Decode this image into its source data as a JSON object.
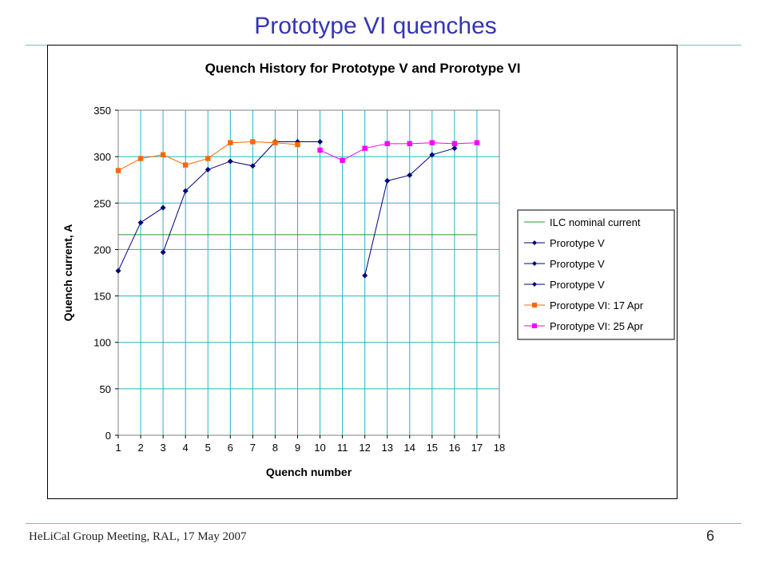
{
  "slide": {
    "title": "Prototype VI quenches",
    "footer": "HeLiCal Group Meeting, RAL, 17 May 2007",
    "page_number": "6"
  },
  "chart_data": {
    "type": "line",
    "title": "Quench History for Prototype V and Prorotype VI",
    "xlabel": "Quench number",
    "ylabel": "Quench current, A",
    "xlim": [
      1,
      18
    ],
    "ylim": [
      0,
      350
    ],
    "x_ticks": [
      1,
      2,
      3,
      4,
      5,
      6,
      7,
      8,
      9,
      10,
      11,
      12,
      13,
      14,
      15,
      16,
      17,
      18
    ],
    "y_ticks": [
      0,
      50,
      100,
      150,
      200,
      250,
      300,
      350
    ],
    "grid": true,
    "legend_position": "right",
    "colors": {
      "grid": "#22b5c6",
      "plot_border": "#808080"
    },
    "series": [
      {
        "name": "ILC nominal current",
        "color": "#2e9a2e",
        "marker": "none",
        "x": [
          1,
          17
        ],
        "y": [
          216,
          216
        ]
      },
      {
        "name": "Prorotype V",
        "color": "#00007a",
        "marker": "diamond",
        "x": [
          1,
          2,
          3
        ],
        "y": [
          177,
          229,
          245
        ]
      },
      {
        "name": "Prorotype V",
        "color": "#00007a",
        "marker": "diamond",
        "x": [
          3,
          4,
          5,
          6,
          7,
          8,
          9,
          10
        ],
        "y": [
          197,
          263,
          286,
          295,
          290,
          316,
          316,
          316
        ]
      },
      {
        "name": "Prorotype V",
        "color": "#00007a",
        "marker": "diamond",
        "x": [
          12,
          13,
          14,
          15,
          16
        ],
        "y": [
          172,
          274,
          280,
          302,
          309
        ]
      },
      {
        "name": "Prorotype VI: 17 Apr",
        "color": "#ff6600",
        "marker": "square",
        "x": [
          1,
          2,
          3,
          4,
          5,
          6,
          7,
          8,
          9
        ],
        "y": [
          285,
          298,
          302,
          291,
          298,
          315,
          316,
          315,
          313
        ]
      },
      {
        "name": "Prorotype VI: 25 Apr",
        "color": "#ff00ff",
        "marker": "square",
        "x": [
          10,
          11,
          12,
          13,
          14,
          15,
          16,
          17
        ],
        "y": [
          307,
          296,
          309,
          314,
          314,
          315,
          314,
          315
        ]
      }
    ]
  }
}
